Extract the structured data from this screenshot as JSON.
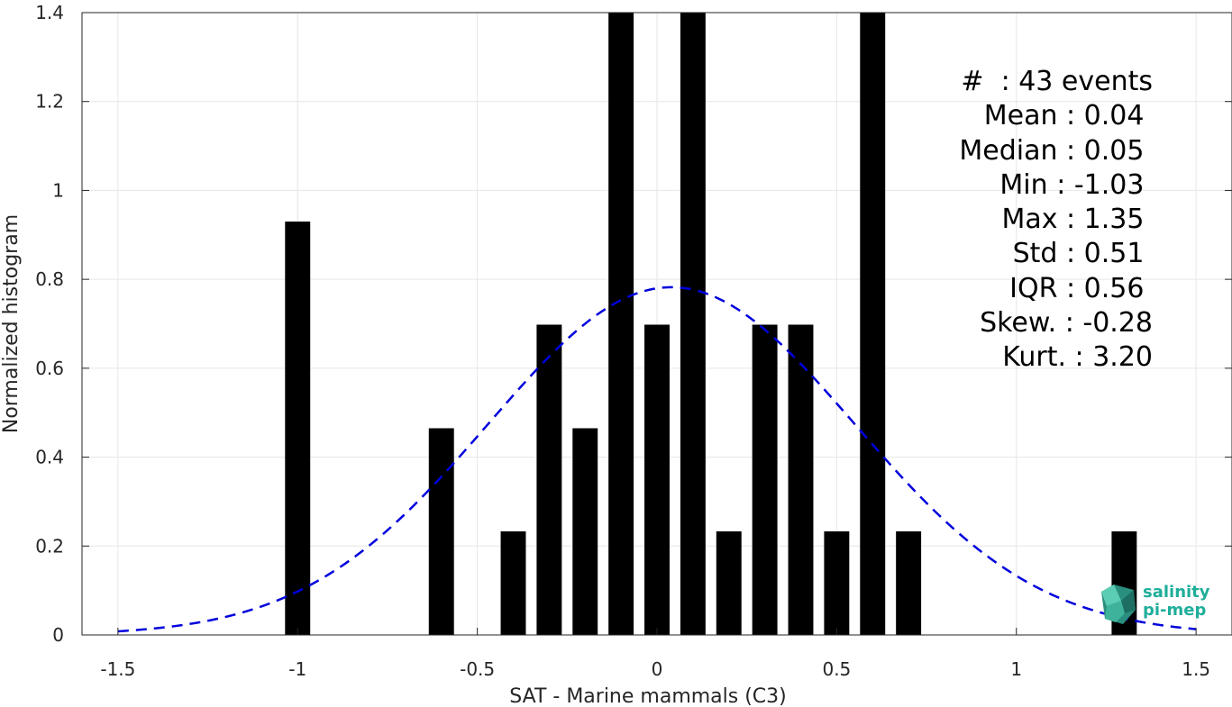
{
  "chart_data": {
    "type": "bar",
    "title": "",
    "xlabel": "SAT - Marine mammals (C3)",
    "ylabel": "Normalized histogram",
    "xlim": [
      -1.6,
      1.6
    ],
    "ylim": [
      0,
      1.4
    ],
    "xticks": [
      -1.5,
      -1,
      -0.5,
      0,
      0.5,
      1,
      1.5
    ],
    "xtick_labels": [
      "-1.5",
      "-1",
      "-0.5",
      "0",
      "0.5",
      "1",
      "1.5"
    ],
    "yticks": [
      0,
      0.2,
      0.4,
      0.6,
      0.8,
      1,
      1.2,
      1.4
    ],
    "ytick_labels": [
      "0",
      "0.2",
      "0.4",
      "0.6",
      "0.8",
      "1",
      "1.2",
      "1.4"
    ],
    "grid": true,
    "bar_width": 0.07,
    "bars": [
      {
        "x": -1.0,
        "y": 0.93
      },
      {
        "x": -0.6,
        "y": 0.465
      },
      {
        "x": -0.4,
        "y": 0.233
      },
      {
        "x": -0.3,
        "y": 0.698
      },
      {
        "x": -0.2,
        "y": 0.465
      },
      {
        "x": -0.1,
        "y": 1.4
      },
      {
        "x": 0.0,
        "y": 0.698
      },
      {
        "x": 0.1,
        "y": 1.4
      },
      {
        "x": 0.2,
        "y": 0.233
      },
      {
        "x": 0.3,
        "y": 0.698
      },
      {
        "x": 0.4,
        "y": 0.698
      },
      {
        "x": 0.5,
        "y": 0.233
      },
      {
        "x": 0.6,
        "y": 1.4
      },
      {
        "x": 0.7,
        "y": 0.233
      },
      {
        "x": 1.3,
        "y": 0.233
      }
    ],
    "gaussian_fit": {
      "mean": 0.04,
      "std": 0.51,
      "x_range": [
        -1.5,
        1.5
      ],
      "color": "#0000dd",
      "style": "dashed"
    },
    "bar_color": "#000000"
  },
  "stats": {
    "lines": [
      "#  : 43 events",
      "Mean : 0.04 ",
      "Median : 0.05 ",
      "Min : -1.03 ",
      "Max : 1.35 ",
      "Std : 0.51 ",
      "IQR : 0.56 ",
      "Skew. : -0.28",
      "Kurt. : 3.20"
    ]
  },
  "logo": {
    "line1": "salinity",
    "line2": "pi-mep"
  }
}
